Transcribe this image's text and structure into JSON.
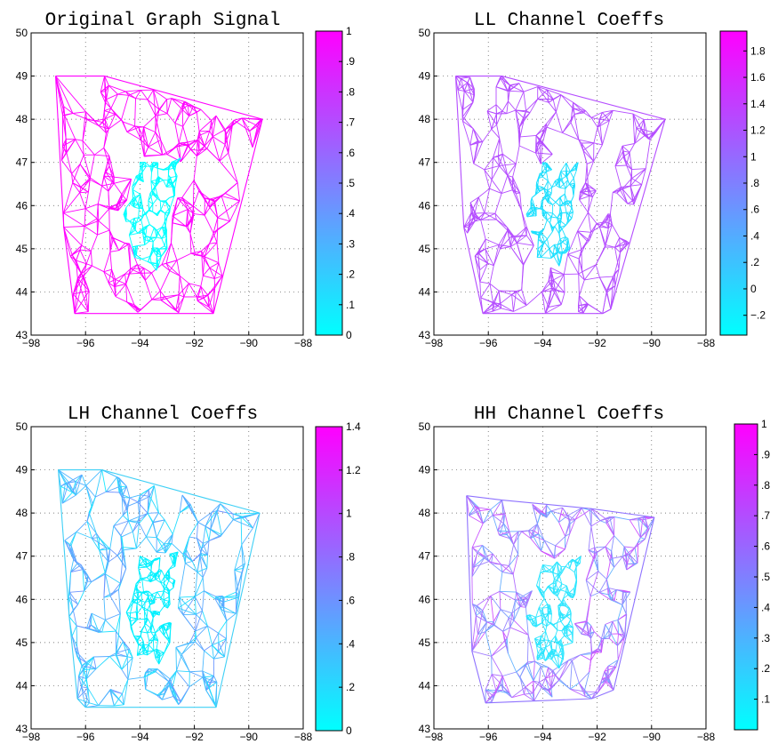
{
  "chart_data": [
    {
      "type": "graph-mesh",
      "title": "Original Graph Signal",
      "xlim": [
        -98,
        -88
      ],
      "ylim": [
        43,
        50
      ],
      "xticks": [
        -98,
        -96,
        -94,
        -92,
        -90,
        -88
      ],
      "yticks": [
        43,
        44,
        45,
        46,
        47,
        48,
        49,
        50
      ],
      "grid": true,
      "colorbar": {
        "min": 0,
        "max": 1,
        "ticks": [
          0,
          0.1,
          0.2,
          0.3,
          0.4,
          0.5,
          0.6,
          0.7,
          0.8,
          0.9,
          1
        ],
        "colormap": [
          "#00ffff",
          "#ff00ff"
        ]
      },
      "colors": {
        "outer": "#ff00ff",
        "inner": "#00ffff"
      },
      "outer_hull": [
        [
          -97.1,
          49.0
        ],
        [
          -95.3,
          49.0
        ],
        [
          -89.5,
          48.0
        ],
        [
          -91.3,
          43.5
        ],
        [
          -96.4,
          43.5
        ],
        [
          -96.8,
          45.5
        ]
      ],
      "inner_region": [
        [
          -94.0,
          47.0
        ],
        [
          -92.5,
          47.1
        ],
        [
          -93.0,
          45.0
        ],
        [
          -93.4,
          44.5
        ],
        [
          -94.2,
          44.8
        ],
        [
          -94.6,
          45.8
        ]
      ]
    },
    {
      "type": "graph-mesh",
      "title": "LL Channel Coeffs",
      "xlim": [
        -98,
        -88
      ],
      "ylim": [
        43,
        50
      ],
      "xticks": [
        -98,
        -96,
        -94,
        -92,
        -90,
        -88
      ],
      "yticks": [
        43,
        44,
        45,
        46,
        47,
        48,
        49,
        50
      ],
      "grid": true,
      "colorbar": {
        "min": -0.35,
        "max": 1.95,
        "ticks": [
          -0.2,
          0,
          0.2,
          0.4,
          0.6,
          0.8,
          1,
          1.2,
          1.4,
          1.6,
          1.8
        ],
        "colormap": [
          "#00ffff",
          "#ff00ff"
        ]
      },
      "colors": {
        "outer": "#b44cff",
        "inner": "#1ee0ff"
      },
      "outer_hull": [
        [
          -97.2,
          49.0
        ],
        [
          -95.5,
          49.0
        ],
        [
          -89.5,
          48.0
        ],
        [
          -91.5,
          43.6
        ],
        [
          -91.8,
          43.5
        ],
        [
          -96.2,
          43.5
        ],
        [
          -96.9,
          45.5
        ]
      ],
      "inner_region": [
        [
          -94.0,
          47.0
        ],
        [
          -92.7,
          47.0
        ],
        [
          -93.0,
          45.0
        ],
        [
          -93.4,
          44.6
        ],
        [
          -94.2,
          44.8
        ],
        [
          -94.6,
          45.8
        ]
      ]
    },
    {
      "type": "graph-mesh",
      "title": "LH Channel Coeffs",
      "xlim": [
        -98,
        -88
      ],
      "ylim": [
        43,
        50
      ],
      "xticks": [
        -98,
        -96,
        -94,
        -92,
        -90,
        -88
      ],
      "yticks": [
        43,
        44,
        45,
        46,
        47,
        48,
        49,
        50
      ],
      "grid": true,
      "colorbar": {
        "min": 0,
        "max": 1.4,
        "ticks": [
          0,
          0.2,
          0.4,
          0.6,
          0.8,
          1,
          1.2,
          1.4
        ],
        "colormap": [
          "#00ffff",
          "#ff00ff"
        ]
      },
      "colors": {
        "outer": "#3fd0f6",
        "inner": "#00f0ff"
      },
      "outer_hull": [
        [
          -97.0,
          49.0
        ],
        [
          -95.4,
          49.0
        ],
        [
          -89.6,
          48.0
        ],
        [
          -91.2,
          43.5
        ],
        [
          -96.0,
          43.5
        ],
        [
          -96.3,
          43.7
        ],
        [
          -96.6,
          45.6
        ]
      ],
      "inner_region": [
        [
          -94.0,
          47.0
        ],
        [
          -92.6,
          47.1
        ],
        [
          -92.9,
          45.0
        ],
        [
          -93.3,
          44.5
        ],
        [
          -94.1,
          44.7
        ],
        [
          -94.5,
          45.7
        ]
      ]
    },
    {
      "type": "graph-mesh",
      "title": "HH Channel Coeffs",
      "xlim": [
        -98,
        -88
      ],
      "ylim": [
        43,
        50
      ],
      "xticks": [
        -98,
        -96,
        -94,
        -92,
        -90,
        -88
      ],
      "yticks": [
        43,
        44,
        45,
        46,
        47,
        48,
        49,
        50
      ],
      "grid": true,
      "colorbar": {
        "min": 0,
        "max": 1,
        "ticks": [
          0.1,
          0.2,
          0.3,
          0.4,
          0.5,
          0.6,
          0.7,
          0.8,
          0.9,
          1
        ],
        "colormap": [
          "#00ffff",
          "#ff00ff"
        ]
      },
      "colors": {
        "outer": "#8f73ff",
        "inner": "#2ee6ff"
      },
      "outer_hull": [
        [
          -96.8,
          48.4
        ],
        [
          -95.5,
          48.3
        ],
        [
          -92.2,
          48.1
        ],
        [
          -89.9,
          47.9
        ],
        [
          -91.4,
          43.9
        ],
        [
          -92.2,
          43.7
        ],
        [
          -96.1,
          43.6
        ],
        [
          -96.6,
          44.8
        ]
      ],
      "inner_region": [
        [
          -94.0,
          46.8
        ],
        [
          -92.6,
          47.0
        ],
        [
          -92.9,
          45.0
        ],
        [
          -93.4,
          44.4
        ],
        [
          -94.2,
          44.6
        ],
        [
          -94.6,
          45.6
        ]
      ]
    }
  ]
}
